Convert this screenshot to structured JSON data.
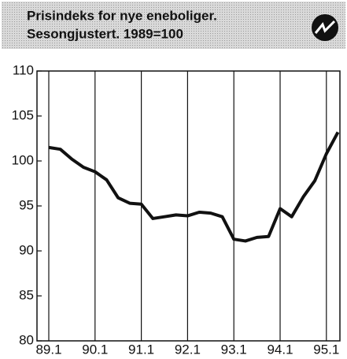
{
  "chart_data": {
    "type": "line",
    "title": "Prisindeks for nye eneboliger.",
    "subtitle": "Sesongjustert. 1989=100",
    "categories": [
      "89.1",
      null,
      null,
      null,
      "90.1",
      null,
      null,
      null,
      "91.1",
      null,
      null,
      null,
      "92.1",
      null,
      null,
      null,
      "93.1",
      null,
      null,
      null,
      "94.1",
      null,
      null,
      null,
      "95.1",
      null
    ],
    "values": [
      101.5,
      101.3,
      100.2,
      99.3,
      98.8,
      97.9,
      95.9,
      95.3,
      95.2,
      93.6,
      93.8,
      94.0,
      93.9,
      94.3,
      94.2,
      93.8,
      91.3,
      91.1,
      91.5,
      91.6,
      94.7,
      93.8,
      96.0,
      97.8,
      100.8,
      103.2
    ],
    "color": "#111111",
    "ylim": [
      80,
      110
    ],
    "yticks": [
      80,
      85,
      90,
      95,
      100,
      105,
      110
    ]
  }
}
